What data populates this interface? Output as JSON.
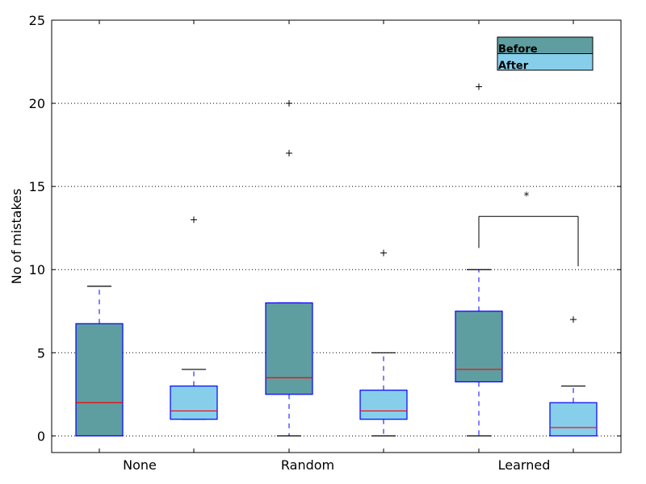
{
  "chart_data": {
    "type": "box",
    "title": "",
    "xlabel": "",
    "ylabel": "No of mistakes",
    "ylim": [
      -1,
      25
    ],
    "yticks": [
      0,
      5,
      10,
      15,
      20,
      25
    ],
    "grid": "horizontal dotted",
    "legend_position": "top-right",
    "categories": [
      "None",
      "Random",
      "Learned"
    ],
    "series": [
      {
        "name": "Before",
        "color": "#5f9ea0"
      },
      {
        "name": "After",
        "color": "#87ceeb"
      }
    ],
    "boxes": [
      {
        "category": "None",
        "series": "Before",
        "whisker_low": 0,
        "q1": 0,
        "median": 2,
        "q3": 6.75,
        "whisker_high": 9,
        "outliers": []
      },
      {
        "category": "None",
        "series": "After",
        "whisker_low": 1,
        "q1": 1,
        "median": 1.5,
        "q3": 3,
        "whisker_high": 4,
        "outliers": [
          13
        ]
      },
      {
        "category": "Random",
        "series": "Before",
        "whisker_low": 0,
        "q1": 2.5,
        "median": 3.5,
        "q3": 8,
        "whisker_high": 8,
        "outliers": [
          17,
          20
        ]
      },
      {
        "category": "Random",
        "series": "After",
        "whisker_low": 0,
        "q1": 1,
        "median": 1.5,
        "q3": 2.75,
        "whisker_high": 5,
        "outliers": [
          11
        ]
      },
      {
        "category": "Learned",
        "series": "Before",
        "whisker_low": 0,
        "q1": 3.25,
        "median": 4,
        "q3": 7.5,
        "whisker_high": 10,
        "outliers": [
          21
        ]
      },
      {
        "category": "Learned",
        "series": "After",
        "whisker_low": 0,
        "q1": 0,
        "median": 0.5,
        "q3": 2,
        "whisker_high": 3,
        "outliers": [
          7
        ]
      }
    ],
    "annotations": [
      {
        "type": "significance",
        "label": "*",
        "between": [
          "Learned/Before",
          "Learned/After"
        ]
      }
    ],
    "colors": {
      "whisker": "#0000ff",
      "median": "#ff0000",
      "box_edge": "#0000ff",
      "cap": "#000000"
    }
  }
}
